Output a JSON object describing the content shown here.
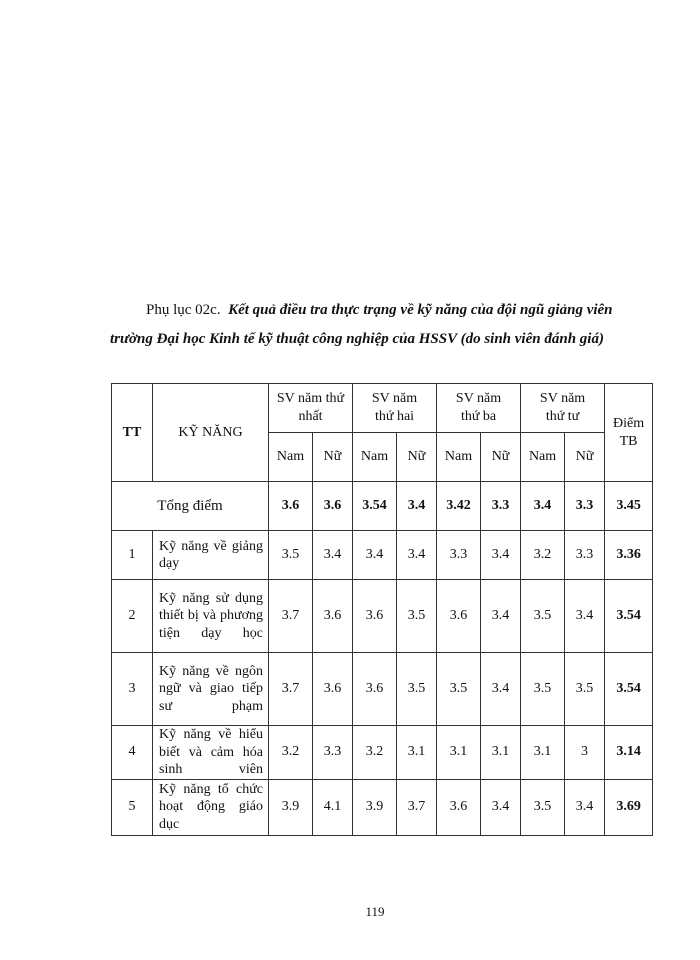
{
  "caption": {
    "label": "Phụ lục 02c.",
    "title": "Kết quả điều tra thực trạng về kỹ năng của đội ngũ giảng viên trường Đại học Kinh tế kỹ thuật công nghiệp của HSSV (do sinh viên đánh giá)"
  },
  "table": {
    "headers": {
      "tt": "TT",
      "skill": "KỸ NĂNG",
      "groups": [
        "SV năm thứ nhất",
        "SV năm thứ hai",
        "SV năm thứ ba",
        "SV năm thứ tư"
      ],
      "sub": [
        "Nam",
        "Nữ"
      ],
      "avg": "Điểm TB"
    },
    "total": {
      "label": "Tổng điểm",
      "values": [
        "3.6",
        "3.6",
        "3.54",
        "3.4",
        "3.42",
        "3.3",
        "3.4",
        "3.3"
      ],
      "avg": "3.45"
    },
    "rows": [
      {
        "tt": "1",
        "skill": "Kỹ năng về giảng dạy",
        "values": [
          "3.5",
          "3.4",
          "3.4",
          "3.4",
          "3.3",
          "3.4",
          "3.2",
          "3.3"
        ],
        "avg": "3.36"
      },
      {
        "tt": "2",
        "skill": "Kỹ năng sử dụng thiết bị và phương tiện dạy học",
        "values": [
          "3.7",
          "3.6",
          "3.6",
          "3.5",
          "3.6",
          "3.4",
          "3.5",
          "3.4"
        ],
        "avg": "3.54"
      },
      {
        "tt": "3",
        "skill": "Kỹ năng về ngôn ngữ và giao tiếp sư phạm",
        "values": [
          "3.7",
          "3.6",
          "3.6",
          "3.5",
          "3.5",
          "3.4",
          "3.5",
          "3.5"
        ],
        "avg": "3.54"
      },
      {
        "tt": "4",
        "skill": "Kỹ năng về hiểu biết và cảm hóa sinh viên",
        "values": [
          "3.2",
          "3.3",
          "3.2",
          "3.1",
          "3.1",
          "3.1",
          "3.1",
          "3"
        ],
        "avg": "3.14"
      },
      {
        "tt": "5",
        "skill": "Kỹ năng tổ chức hoạt động giáo dục",
        "values": [
          "3.9",
          "4.1",
          "3.9",
          "3.7",
          "3.6",
          "3.4",
          "3.5",
          "3.4"
        ],
        "avg": "3.69"
      }
    ]
  },
  "page_number": "119"
}
